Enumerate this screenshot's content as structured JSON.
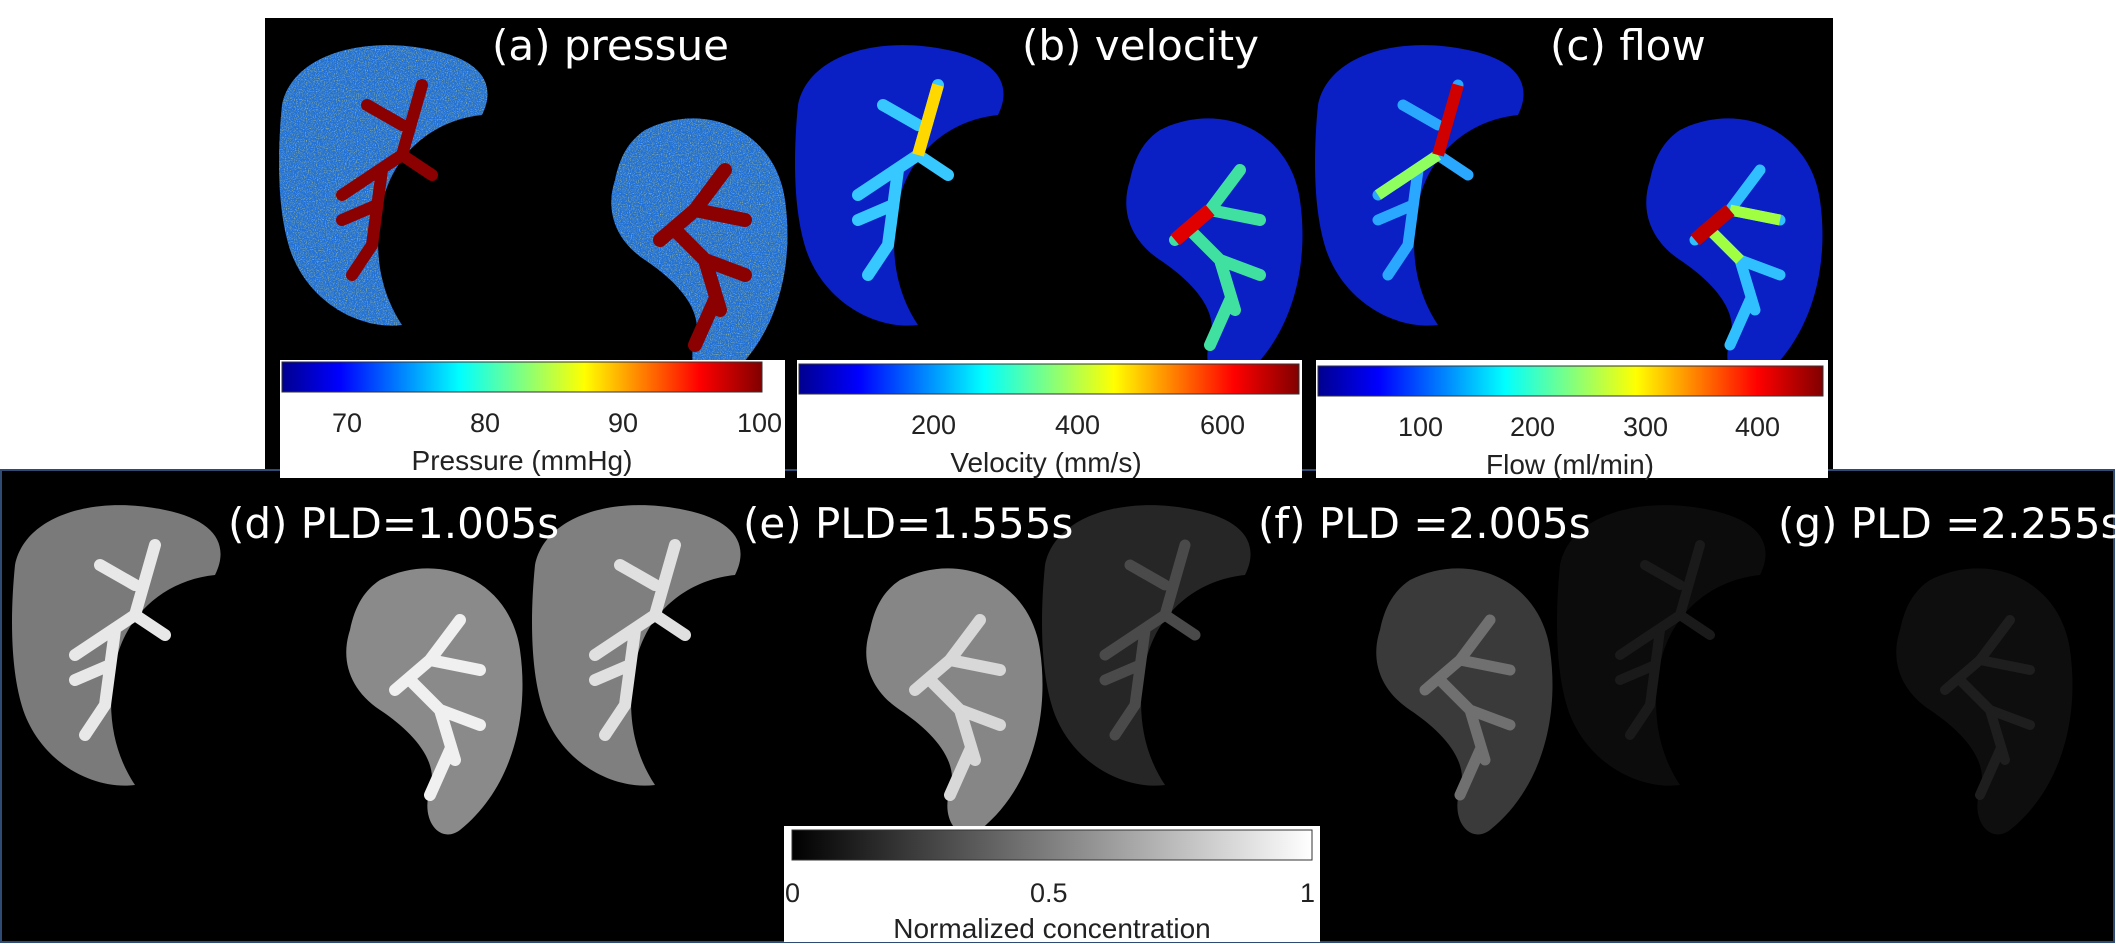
{
  "top_panels": [
    {
      "title": "(a) pressue",
      "colorbar": {
        "ticks": [
          "70",
          "80",
          "90",
          "100"
        ],
        "label": "Pressure (mmHg)",
        "colormap": "jet"
      }
    },
    {
      "title": "(b) velocity",
      "colorbar": {
        "ticks": [
          "200",
          "400",
          "600"
        ],
        "label": "Velocity (mm/s)",
        "colormap": "jet"
      }
    },
    {
      "title": "(c) flow",
      "colorbar": {
        "ticks": [
          "100",
          "200",
          "300",
          "400"
        ],
        "label": "Flow (ml/min)",
        "colormap": "jet"
      }
    }
  ],
  "bottom_panels": [
    {
      "title": "(d) PLD=1.005s",
      "brightness": 0.55
    },
    {
      "title": "(e) PLD=1.555s",
      "brightness": 0.45
    },
    {
      "title": "(f) PLD =2.005s",
      "brightness": 0.2
    },
    {
      "title": "(g) PLD =2.255s",
      "brightness": 0.06
    }
  ],
  "gray_colorbar": {
    "ticks": [
      "0",
      "0.5",
      "1"
    ],
    "label": "Normalized concentration",
    "colormap": "gray"
  },
  "colors": {
    "background": "#000000",
    "frame_border": "#2f4a73",
    "vessel": "#8b0000"
  }
}
